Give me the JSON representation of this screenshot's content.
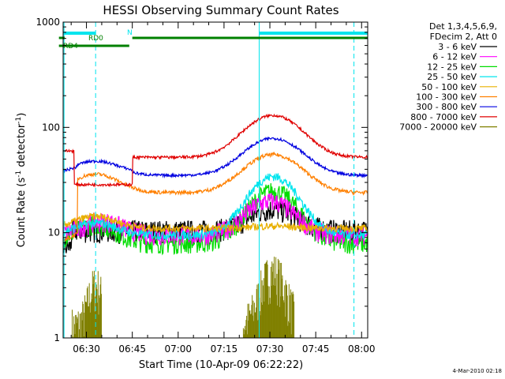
{
  "chart_data": {
    "type": "line",
    "title": "HESSI Observing Summary Count Rates",
    "xlabel": "Start Time (10-Apr-09 06:22:22)",
    "ylabel_main": "Count Rate (s",
    "ylabel_sup1": "-1",
    "ylabel_mid": " detector",
    "ylabel_sup2": "-1",
    "ylabel_end": ")",
    "yscale": "log",
    "ylim": [
      1,
      1000
    ],
    "xlim": [
      "06:22:22",
      "08:02:00"
    ],
    "xticks": [
      "06:30",
      "06:45",
      "07:00",
      "07:15",
      "07:30",
      "07:45",
      "08:00"
    ],
    "yticks": [
      "1",
      "10",
      "100",
      "1000"
    ],
    "legend_header": [
      "Det 1,3,4,5,6,9,",
      "FDecim 2, Att 0"
    ],
    "footer_date": "4-Mar-2010 02:18",
    "flags": [
      {
        "label": "RD0",
        "color": "#008000"
      },
      {
        "label": "RD4",
        "color": "#008000"
      },
      {
        "label": "N",
        "color": "#00e5ee"
      }
    ],
    "series": [
      {
        "name": "3 - 6 keV",
        "color": "#000000",
        "level": 10.5
      },
      {
        "name": "6 - 12 keV",
        "color": "#ff00ff",
        "level": 11.0
      },
      {
        "name": "12 - 25 keV",
        "color": "#00dd00",
        "level": 9.0
      },
      {
        "name": "25 - 50 keV",
        "color": "#00e5ee",
        "level": 11.5
      },
      {
        "name": "50 - 100 keV",
        "color": "#e8b000",
        "level": 12.0
      },
      {
        "name": "100 - 300 keV",
        "color": "#ff8000",
        "level": 35.0
      },
      {
        "name": "300 - 800 keV",
        "color": "#0000e0",
        "level": 42.0
      },
      {
        "name": "800 - 7000 keV",
        "color": "#e00000",
        "level": 58.0
      },
      {
        "name": "7000 - 20000 keV",
        "color": "#808000",
        "level": 1.6
      }
    ]
  }
}
